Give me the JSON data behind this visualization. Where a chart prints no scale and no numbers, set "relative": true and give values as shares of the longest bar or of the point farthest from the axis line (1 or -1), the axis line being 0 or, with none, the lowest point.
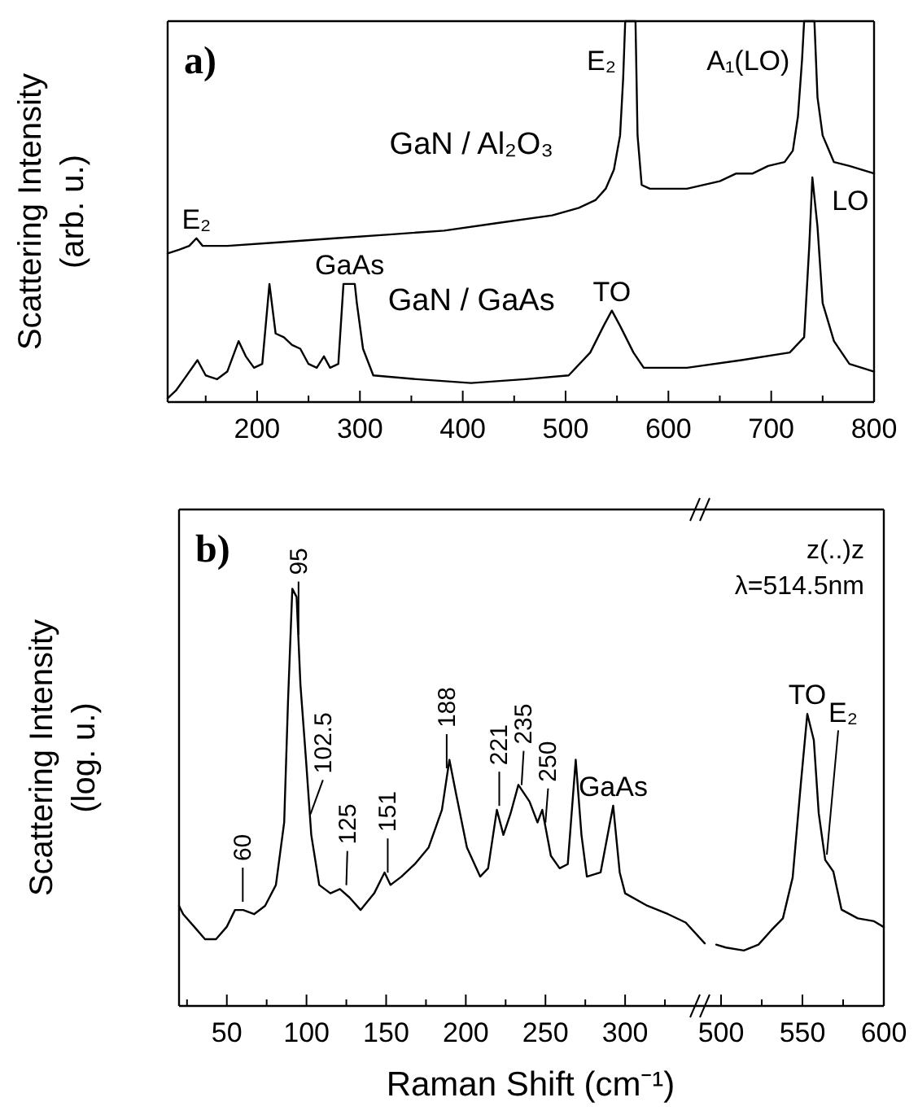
{
  "chart_data": [
    {
      "type": "line",
      "relative": true,
      "title": "a)",
      "ylabel": "Scattering Intensity (arb. u.)",
      "xlim": [
        113,
        800
      ],
      "xticks": [
        {
          "value": 150,
          "label": null
        },
        200,
        {
          "value": 250,
          "label": null
        },
        300,
        {
          "value": 350,
          "label": null
        },
        400,
        {
          "value": 450,
          "label": null
        },
        500,
        {
          "value": 550,
          "label": null
        },
        600,
        {
          "value": 650,
          "label": null
        },
        700,
        {
          "value": 750,
          "label": null
        },
        800
      ],
      "series": [
        {
          "name": "GaN / Al₂O₃",
          "color": "#000000",
          "x": [
            113,
            124,
            134,
            141,
            147,
            171,
            224,
            276,
            329,
            382,
            434,
            487,
            513,
            529,
            539,
            547,
            553,
            556,
            558,
            568,
            570,
            574,
            582,
            597,
            618,
            650,
            666,
            682,
            697,
            713,
            721,
            726,
            730,
            732,
            742,
            745,
            750,
            761,
            776,
            800
          ],
          "values": [
            0.39,
            0.4,
            0.41,
            0.43,
            0.41,
            0.41,
            0.42,
            0.43,
            0.44,
            0.45,
            0.47,
            0.49,
            0.51,
            0.53,
            0.56,
            0.61,
            0.7,
            0.85,
            1,
            1,
            0.7,
            0.57,
            0.56,
            0.56,
            0.56,
            0.58,
            0.6,
            0.6,
            0.62,
            0.63,
            0.66,
            0.75,
            0.9,
            1,
            1,
            0.8,
            0.7,
            0.63,
            0.62,
            0.6
          ]
        },
        {
          "name": "GaN / GaAs",
          "color": "#000000",
          "x": [
            113,
            121,
            129,
            142,
            150,
            161,
            171,
            182,
            189,
            197,
            205,
            212,
            218,
            226,
            234,
            242,
            250,
            258,
            265,
            271,
            279,
            284,
            295,
            297,
            303,
            313,
            355,
            408,
            461,
            503,
            524,
            537,
            545,
            553,
            566,
            576,
            618,
            671,
            718,
            732,
            737,
            740,
            745,
            750,
            761,
            776,
            800
          ],
          "values": [
            0.01,
            0.03,
            0.06,
            0.11,
            0.07,
            0.06,
            0.08,
            0.16,
            0.12,
            0.09,
            0.1,
            0.31,
            0.18,
            0.17,
            0.15,
            0.14,
            0.1,
            0.09,
            0.12,
            0.09,
            0.1,
            0.31,
            0.31,
            0.26,
            0.14,
            0.07,
            0.06,
            0.05,
            0.06,
            0.07,
            0.13,
            0.2,
            0.24,
            0.2,
            0.13,
            0.09,
            0.09,
            0.11,
            0.13,
            0.17,
            0.41,
            0.59,
            0.46,
            0.26,
            0.16,
            0.1,
            0.08
          ]
        }
      ],
      "annotations": [
        {
          "text": "E₂",
          "x": 141,
          "y": 0.43
        },
        {
          "text": "E₂",
          "x": 568,
          "y": 1
        },
        {
          "text": "A₁(LO)",
          "x": 737,
          "y": 1
        },
        {
          "text": "GaAs",
          "x": 290,
          "y": 0.31
        },
        {
          "text": "TO",
          "x": 545,
          "y": 0.24
        },
        {
          "text": "LO",
          "x": 740,
          "y": 0.59
        }
      ]
    },
    {
      "type": "line",
      "relative": true,
      "title": "b)",
      "ylabel": "Scattering Intensity (log. u.)",
      "xlabel": "Raman Shift (cm⁻¹)",
      "xlim": [
        20,
        350
      ],
      "xticks": [
        {
          "value": 25,
          "label": null
        },
        50,
        {
          "value": 75,
          "label": null
        },
        100,
        {
          "value": 125,
          "label": null
        },
        150,
        {
          "value": 175,
          "label": null
        },
        200,
        {
          "value": 225,
          "label": null
        },
        250,
        {
          "value": 275,
          "label": null
        },
        300,
        {
          "value": 325,
          "label": null
        }
      ],
      "series": [
        {
          "color": "#000000",
          "x": [
            20,
            22.6,
            29.5,
            36.3,
            43.2,
            50,
            55.1,
            60.3,
            67.1,
            74,
            80.8,
            86,
            88.4,
            91.1,
            93.8,
            96.2,
            99.7,
            103,
            108,
            115,
            121,
            127,
            134,
            142.5,
            149,
            152.7,
            159.6,
            168,
            176.7,
            185,
            189.7,
            193.8,
            200.7,
            209,
            214,
            219.5,
            223.6,
            228,
            233,
            240,
            245,
            248,
            253.4,
            258.9,
            264,
            269,
            272.6,
            276,
            284.6,
            292.5,
            296.6,
            300,
            314,
            327,
            338,
            350
          ],
          "values": [
            0.24,
            0.22,
            0.19,
            0.16,
            0.16,
            0.19,
            0.23,
            0.23,
            0.22,
            0.24,
            0.29,
            0.44,
            0.73,
            1,
            0.98,
            0.77,
            0.59,
            0.41,
            0.29,
            0.27,
            0.28,
            0.26,
            0.23,
            0.27,
            0.32,
            0.29,
            0.31,
            0.34,
            0.38,
            0.47,
            0.59,
            0.51,
            0.38,
            0.31,
            0.33,
            0.47,
            0.41,
            0.46,
            0.53,
            0.49,
            0.44,
            0.47,
            0.36,
            0.33,
            0.34,
            0.59,
            0.41,
            0.31,
            0.32,
            0.48,
            0.32,
            0.27,
            0.24,
            0.22,
            0.2,
            0.15
          ]
        }
      ],
      "annotations": [
        {
          "text": "60",
          "x": 60,
          "y": 0.23
        },
        {
          "text": "95",
          "x": 95,
          "y": 0.87
        },
        {
          "text": "102.5",
          "x": 102.5,
          "y": 0.44
        },
        {
          "text": "125",
          "x": 125,
          "y": 0.27
        },
        {
          "text": "151",
          "x": 151,
          "y": 0.3
        },
        {
          "text": "188",
          "x": 188,
          "y": 0.55
        },
        {
          "text": "221",
          "x": 221,
          "y": 0.46
        },
        {
          "text": "235",
          "x": 235,
          "y": 0.51
        },
        {
          "text": "250",
          "x": 250,
          "y": 0.42
        },
        {
          "text": "GaAs",
          "x": 292.5,
          "y": 0.48
        }
      ]
    },
    {
      "type": "line",
      "relative": true,
      "xlim": [
        490,
        600
      ],
      "xticks": [
        500,
        {
          "value": 525,
          "label": null
        },
        550,
        {
          "value": 575,
          "label": null
        },
        600
      ],
      "series": [
        {
          "color": "#000000",
          "x": [
            497,
            503,
            514,
            523,
            531,
            538,
            544,
            549,
            553,
            557,
            560,
            564,
            569,
            574,
            584,
            594,
            600
          ],
          "values": [
            0.21,
            0.2,
            0.19,
            0.21,
            0.26,
            0.3,
            0.44,
            0.76,
            1,
            0.91,
            0.66,
            0.5,
            0.46,
            0.33,
            0.3,
            0.29,
            0.27
          ]
        }
      ],
      "annotations": [
        "z(..)z",
        "λ=514.5nm",
        {
          "text": "TO",
          "x": 553,
          "y": 1
        },
        {
          "text": "E₂",
          "x": 565,
          "y": 0.49
        }
      ]
    }
  ]
}
